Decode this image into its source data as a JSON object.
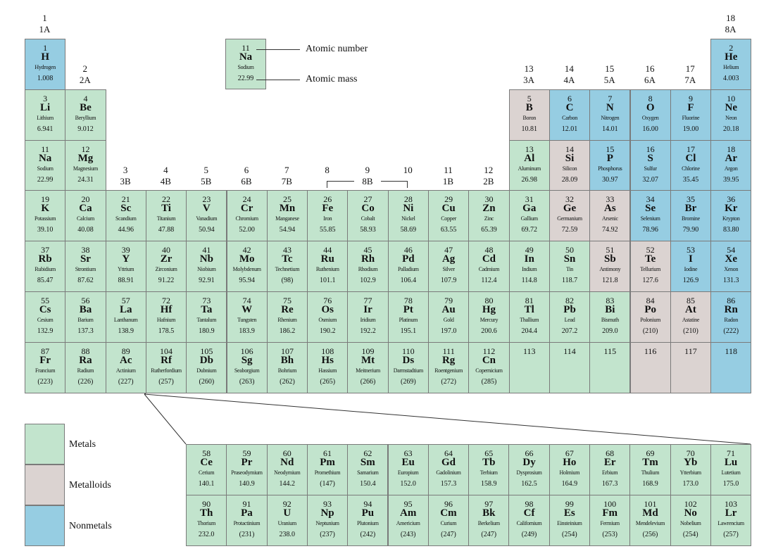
{
  "groups": [
    {
      "n": "1",
      "a": "1A"
    },
    {
      "n": "2",
      "a": "2A"
    },
    {
      "n": "3",
      "a": "3B"
    },
    {
      "n": "4",
      "a": "4B"
    },
    {
      "n": "5",
      "a": "5B"
    },
    {
      "n": "6",
      "a": "6B"
    },
    {
      "n": "7",
      "a": "7B"
    },
    {
      "n": "8",
      "a": ""
    },
    {
      "n": "9",
      "a": ""
    },
    {
      "n": "10",
      "a": ""
    },
    {
      "n": "11",
      "a": "1B"
    },
    {
      "n": "12",
      "a": "2B"
    },
    {
      "n": "13",
      "a": "3A"
    },
    {
      "n": "14",
      "a": "4A"
    },
    {
      "n": "15",
      "a": "5A"
    },
    {
      "n": "16",
      "a": "6A"
    },
    {
      "n": "17",
      "a": "7A"
    },
    {
      "n": "18",
      "a": "8A"
    }
  ],
  "group_8b_label": "8B",
  "key": {
    "number": "11",
    "symbol": "Na",
    "name": "Sodium",
    "mass": "22.99",
    "number_label": "Atomic number",
    "mass_label": "Atomic mass"
  },
  "legend": [
    {
      "label": "Metals",
      "color": "#c2e4cd"
    },
    {
      "label": "Metalloids",
      "color": "#dbd3d1"
    },
    {
      "label": "Nonmetals",
      "color": "#96cde2"
    }
  ],
  "colors": {
    "metal": "#c2e4cd",
    "metalloid": "#dbd3d1",
    "nonmetal": "#96cde2"
  },
  "elements": [
    [
      "1",
      "H",
      "Hydrogen",
      "1.008",
      1,
      1,
      "n"
    ],
    [
      "2",
      "He",
      "Helium",
      "4.003",
      18,
      1,
      "n"
    ],
    [
      "3",
      "Li",
      "Lithium",
      "6.941",
      1,
      2,
      "m"
    ],
    [
      "4",
      "Be",
      "Beryllium",
      "9.012",
      2,
      2,
      "m"
    ],
    [
      "5",
      "B",
      "Boron",
      "10.81",
      13,
      2,
      "d"
    ],
    [
      "6",
      "C",
      "Carbon",
      "12.01",
      14,
      2,
      "n"
    ],
    [
      "7",
      "N",
      "Nitrogen",
      "14.01",
      15,
      2,
      "n"
    ],
    [
      "8",
      "O",
      "Oxygen",
      "16.00",
      16,
      2,
      "n"
    ],
    [
      "9",
      "F",
      "Fluorine",
      "19.00",
      17,
      2,
      "n"
    ],
    [
      "10",
      "Ne",
      "Neon",
      "20.18",
      18,
      2,
      "n"
    ],
    [
      "11",
      "Na",
      "Sodium",
      "22.99",
      1,
      3,
      "m"
    ],
    [
      "12",
      "Mg",
      "Magnesium",
      "24.31",
      2,
      3,
      "m"
    ],
    [
      "13",
      "Al",
      "Aluminum",
      "26.98",
      13,
      3,
      "m"
    ],
    [
      "14",
      "Si",
      "Silicon",
      "28.09",
      14,
      3,
      "d"
    ],
    [
      "15",
      "P",
      "Phosphorus",
      "30.97",
      15,
      3,
      "n"
    ],
    [
      "16",
      "S",
      "Sulfur",
      "32.07",
      16,
      3,
      "n"
    ],
    [
      "17",
      "Cl",
      "Chlorine",
      "35.45",
      17,
      3,
      "n"
    ],
    [
      "18",
      "Ar",
      "Argon",
      "39.95",
      18,
      3,
      "n"
    ],
    [
      "19",
      "K",
      "Potassium",
      "39.10",
      1,
      4,
      "m"
    ],
    [
      "20",
      "Ca",
      "Calcium",
      "40.08",
      2,
      4,
      "m"
    ],
    [
      "21",
      "Sc",
      "Scandium",
      "44.96",
      3,
      4,
      "m"
    ],
    [
      "22",
      "Ti",
      "Titanium",
      "47.88",
      4,
      4,
      "m"
    ],
    [
      "23",
      "V",
      "Vanadium",
      "50.94",
      5,
      4,
      "m"
    ],
    [
      "24",
      "Cr",
      "Chromium",
      "52.00",
      6,
      4,
      "m"
    ],
    [
      "25",
      "Mn",
      "Manganese",
      "54.94",
      7,
      4,
      "m"
    ],
    [
      "26",
      "Fe",
      "Iron",
      "55.85",
      8,
      4,
      "m"
    ],
    [
      "27",
      "Co",
      "Cobalt",
      "58.93",
      9,
      4,
      "m"
    ],
    [
      "28",
      "Ni",
      "Nickel",
      "58.69",
      10,
      4,
      "m"
    ],
    [
      "29",
      "Cu",
      "Copper",
      "63.55",
      11,
      4,
      "m"
    ],
    [
      "30",
      "Zn",
      "Zinc",
      "65.39",
      12,
      4,
      "m"
    ],
    [
      "31",
      "Ga",
      "Gallium",
      "69.72",
      13,
      4,
      "m"
    ],
    [
      "32",
      "Ge",
      "Germanium",
      "72.59",
      14,
      4,
      "d"
    ],
    [
      "33",
      "As",
      "Arsenic",
      "74.92",
      15,
      4,
      "d"
    ],
    [
      "34",
      "Se",
      "Selenium",
      "78.96",
      16,
      4,
      "n"
    ],
    [
      "35",
      "Br",
      "Bromine",
      "79.90",
      17,
      4,
      "n"
    ],
    [
      "36",
      "Kr",
      "Krypton",
      "83.80",
      18,
      4,
      "n"
    ],
    [
      "37",
      "Rb",
      "Rubidium",
      "85.47",
      1,
      5,
      "m"
    ],
    [
      "38",
      "Sr",
      "Strontium",
      "87.62",
      2,
      5,
      "m"
    ],
    [
      "39",
      "Y",
      "Yttrium",
      "88.91",
      3,
      5,
      "m"
    ],
    [
      "40",
      "Zr",
      "Zirconium",
      "91.22",
      4,
      5,
      "m"
    ],
    [
      "41",
      "Nb",
      "Niobium",
      "92.91",
      5,
      5,
      "m"
    ],
    [
      "42",
      "Mo",
      "Molybdenum",
      "95.94",
      6,
      5,
      "m"
    ],
    [
      "43",
      "Tc",
      "Technetium",
      "(98)",
      7,
      5,
      "m"
    ],
    [
      "44",
      "Ru",
      "Ruthenium",
      "101.1",
      8,
      5,
      "m"
    ],
    [
      "45",
      "Rh",
      "Rhodium",
      "102.9",
      9,
      5,
      "m"
    ],
    [
      "46",
      "Pd",
      "Palladium",
      "106.4",
      10,
      5,
      "m"
    ],
    [
      "47",
      "Ag",
      "Silver",
      "107.9",
      11,
      5,
      "m"
    ],
    [
      "48",
      "Cd",
      "Cadmium",
      "112.4",
      12,
      5,
      "m"
    ],
    [
      "49",
      "In",
      "Indium",
      "114.8",
      13,
      5,
      "m"
    ],
    [
      "50",
      "Sn",
      "Tin",
      "118.7",
      14,
      5,
      "m"
    ],
    [
      "51",
      "Sb",
      "Antimony",
      "121.8",
      15,
      5,
      "d"
    ],
    [
      "52",
      "Te",
      "Tellurium",
      "127.6",
      16,
      5,
      "d"
    ],
    [
      "53",
      "I",
      "Iodine",
      "126.9",
      17,
      5,
      "n"
    ],
    [
      "54",
      "Xe",
      "Xenon",
      "131.3",
      18,
      5,
      "n"
    ],
    [
      "55",
      "Cs",
      "Cesium",
      "132.9",
      1,
      6,
      "m"
    ],
    [
      "56",
      "Ba",
      "Barium",
      "137.3",
      2,
      6,
      "m"
    ],
    [
      "57",
      "La",
      "Lanthanum",
      "138.9",
      3,
      6,
      "m"
    ],
    [
      "72",
      "Hf",
      "Hafnium",
      "178.5",
      4,
      6,
      "m"
    ],
    [
      "73",
      "Ta",
      "Tantalum",
      "180.9",
      5,
      6,
      "m"
    ],
    [
      "74",
      "W",
      "Tungsten",
      "183.9",
      6,
      6,
      "m"
    ],
    [
      "75",
      "Re",
      "Rhenium",
      "186.2",
      7,
      6,
      "m"
    ],
    [
      "76",
      "Os",
      "Osmium",
      "190.2",
      8,
      6,
      "m"
    ],
    [
      "77",
      "Ir",
      "Iridium",
      "192.2",
      9,
      6,
      "m"
    ],
    [
      "78",
      "Pt",
      "Platinum",
      "195.1",
      10,
      6,
      "m"
    ],
    [
      "79",
      "Au",
      "Gold",
      "197.0",
      11,
      6,
      "m"
    ],
    [
      "80",
      "Hg",
      "Mercury",
      "200.6",
      12,
      6,
      "m"
    ],
    [
      "81",
      "Tl",
      "Thallium",
      "204.4",
      13,
      6,
      "m"
    ],
    [
      "82",
      "Pb",
      "Lead",
      "207.2",
      14,
      6,
      "m"
    ],
    [
      "83",
      "Bi",
      "Bismuth",
      "209.0",
      15,
      6,
      "m"
    ],
    [
      "84",
      "Po",
      "Polonium",
      "(210)",
      16,
      6,
      "d"
    ],
    [
      "85",
      "At",
      "Astatine",
      "(210)",
      17,
      6,
      "d"
    ],
    [
      "86",
      "Rn",
      "Radon",
      "(222)",
      18,
      6,
      "n"
    ],
    [
      "87",
      "Fr",
      "Francium",
      "(223)",
      1,
      7,
      "m"
    ],
    [
      "88",
      "Ra",
      "Radium",
      "(226)",
      2,
      7,
      "m"
    ],
    [
      "89",
      "Ac",
      "Actinium",
      "(227)",
      3,
      7,
      "m"
    ],
    [
      "104",
      "Rf",
      "Rutherfordium",
      "(257)",
      4,
      7,
      "m"
    ],
    [
      "105",
      "Db",
      "Dubnium",
      "(260)",
      5,
      7,
      "m"
    ],
    [
      "106",
      "Sg",
      "Seaborgium",
      "(263)",
      6,
      7,
      "m"
    ],
    [
      "107",
      "Bh",
      "Bohrium",
      "(262)",
      7,
      7,
      "m"
    ],
    [
      "108",
      "Hs",
      "Hassium",
      "(265)",
      8,
      7,
      "m"
    ],
    [
      "109",
      "Mt",
      "Meitnerium",
      "(266)",
      9,
      7,
      "m"
    ],
    [
      "110",
      "Ds",
      "Darmstadtium",
      "(269)",
      10,
      7,
      "m"
    ],
    [
      "111",
      "Rg",
      "Roentgenium",
      "(272)",
      11,
      7,
      "m"
    ],
    [
      "112",
      "Cn",
      "Copernicium",
      "(285)",
      12,
      7,
      "m"
    ],
    [
      "113",
      "",
      "",
      "",
      13,
      7,
      "m"
    ],
    [
      "114",
      "",
      "",
      "",
      14,
      7,
      "m"
    ],
    [
      "115",
      "",
      "",
      "",
      15,
      7,
      "m"
    ],
    [
      "116",
      "",
      "",
      "",
      16,
      7,
      "d"
    ],
    [
      "117",
      "",
      "",
      "",
      17,
      7,
      "d"
    ],
    [
      "118",
      "",
      "",
      "",
      18,
      7,
      "n"
    ],
    [
      "58",
      "Ce",
      "Cerium",
      "140.1",
      1,
      8,
      "m"
    ],
    [
      "59",
      "Pr",
      "Praseodymium",
      "140.9",
      2,
      8,
      "m"
    ],
    [
      "60",
      "Nd",
      "Neodymium",
      "144.2",
      3,
      8,
      "m"
    ],
    [
      "61",
      "Pm",
      "Promethium",
      "(147)",
      4,
      8,
      "m"
    ],
    [
      "62",
      "Sm",
      "Samarium",
      "150.4",
      5,
      8,
      "m"
    ],
    [
      "63",
      "Eu",
      "Europium",
      "152.0",
      6,
      8,
      "m"
    ],
    [
      "64",
      "Gd",
      "Gadolinium",
      "157.3",
      7,
      8,
      "m"
    ],
    [
      "65",
      "Tb",
      "Terbium",
      "158.9",
      8,
      8,
      "m"
    ],
    [
      "66",
      "Dy",
      "Dysprosium",
      "162.5",
      9,
      8,
      "m"
    ],
    [
      "67",
      "Ho",
      "Holmium",
      "164.9",
      10,
      8,
      "m"
    ],
    [
      "68",
      "Er",
      "Erbium",
      "167.3",
      11,
      8,
      "m"
    ],
    [
      "69",
      "Tm",
      "Thulium",
      "168.9",
      12,
      8,
      "m"
    ],
    [
      "70",
      "Yb",
      "Ytterbium",
      "173.0",
      13,
      8,
      "m"
    ],
    [
      "71",
      "Lu",
      "Lutetium",
      "175.0",
      14,
      8,
      "m"
    ],
    [
      "90",
      "Th",
      "Thorium",
      "232.0",
      1,
      9,
      "m"
    ],
    [
      "91",
      "Pa",
      "Protactinium",
      "(231)",
      2,
      9,
      "m"
    ],
    [
      "92",
      "U",
      "Uranium",
      "238.0",
      3,
      9,
      "m"
    ],
    [
      "93",
      "Np",
      "Neptunium",
      "(237)",
      4,
      9,
      "m"
    ],
    [
      "94",
      "Pu",
      "Plutonium",
      "(242)",
      5,
      9,
      "m"
    ],
    [
      "95",
      "Am",
      "Americium",
      "(243)",
      6,
      9,
      "m"
    ],
    [
      "96",
      "Cm",
      "Curium",
      "(247)",
      7,
      9,
      "m"
    ],
    [
      "97",
      "Bk",
      "Berkelium",
      "(247)",
      8,
      9,
      "m"
    ],
    [
      "98",
      "Cf",
      "Californium",
      "(249)",
      9,
      9,
      "m"
    ],
    [
      "99",
      "Es",
      "Einsteinium",
      "(254)",
      10,
      9,
      "m"
    ],
    [
      "100",
      "Fm",
      "Fermium",
      "(253)",
      11,
      9,
      "m"
    ],
    [
      "101",
      "Md",
      "Mendelevium",
      "(256)",
      12,
      9,
      "m"
    ],
    [
      "102",
      "No",
      "Nobelium",
      "(254)",
      13,
      9,
      "m"
    ],
    [
      "103",
      "Lr",
      "Lawrencium",
      "(257)",
      14,
      9,
      "m"
    ]
  ]
}
